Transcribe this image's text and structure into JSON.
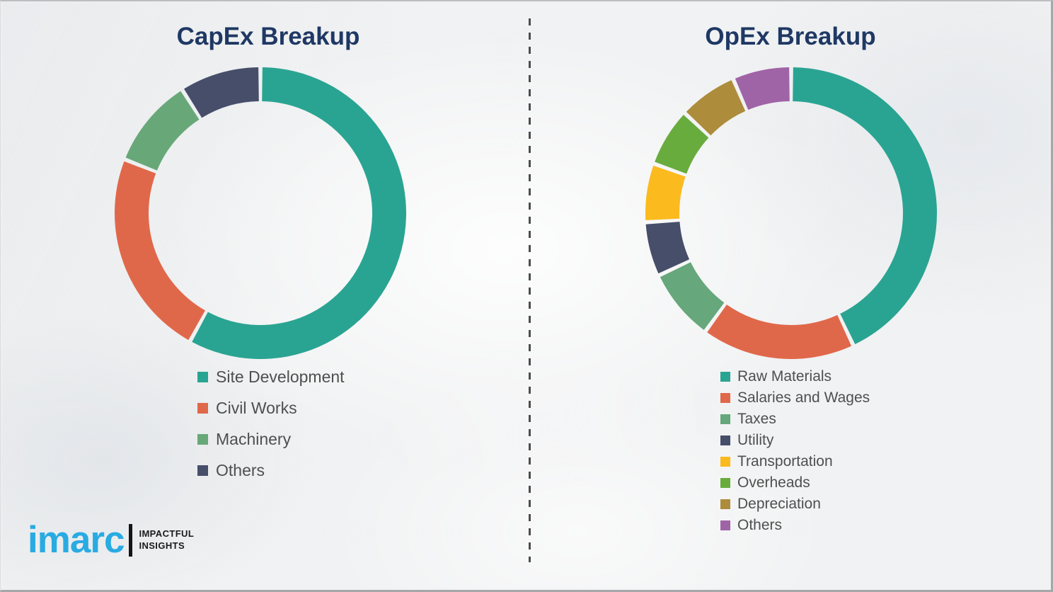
{
  "page": {
    "background_color": "#F1F2F3",
    "divider_color": "#4C4C4C",
    "title_color": "#1F3864",
    "legend_text_color": "#4F4F4F"
  },
  "chart_data": [
    {
      "type": "donut",
      "title": "CapEx Breakup",
      "start_angle_deg": 0,
      "direction": "clockwise",
      "legend_position": "bottom-left",
      "labels": [
        "Site Development",
        "Civil Works",
        "Machinery",
        "Others"
      ],
      "values": [
        58,
        23,
        10,
        9
      ],
      "colors": [
        "#2AA492",
        "#E0684A",
        "#68A878",
        "#464E6A"
      ]
    },
    {
      "type": "donut",
      "title": "OpEx Breakup",
      "start_angle_deg": 0,
      "direction": "clockwise",
      "legend_position": "bottom-left",
      "labels": [
        "Raw Materials",
        "Salaries and Wages",
        "Taxes",
        "Utility",
        "Transportation",
        "Overheads",
        "Depreciation",
        "Others"
      ],
      "values": [
        43,
        17,
        8,
        6,
        6.5,
        6.5,
        6.5,
        6.5
      ],
      "colors": [
        "#2AA492",
        "#E0684A",
        "#66A77B",
        "#464E6A",
        "#FBBA1E",
        "#69AC3E",
        "#AD8C3B",
        "#9F64A6"
      ]
    }
  ],
  "branding": {
    "logo_text": "imarc",
    "tagline_line1": "IMPACTFUL",
    "tagline_line2": "INSIGHTS",
    "logo_color": "#29ABE2"
  }
}
